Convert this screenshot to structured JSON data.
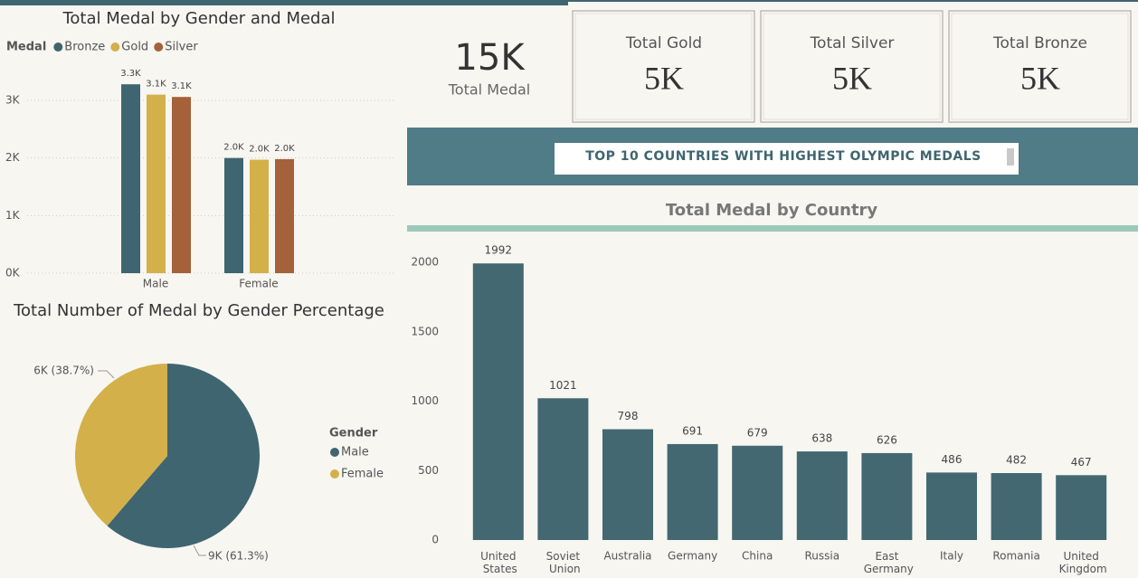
{
  "chart_data": [
    {
      "type": "grouped-bar",
      "title": "Total Medal by Gender and Medal",
      "legend_title": "Medal",
      "categories": [
        "Male",
        "Female"
      ],
      "series": [
        {
          "name": "Bronze",
          "color": "#3f6570",
          "values": [
            3280,
            2000
          ],
          "value_labels": [
            "3.3K",
            "2.0K"
          ]
        },
        {
          "name": "Gold",
          "color": "#d4b04a",
          "values": [
            3100,
            1970
          ],
          "value_labels": [
            "3.1K",
            "2.0K"
          ]
        },
        {
          "name": "Silver",
          "color": "#a5613a",
          "values": [
            3060,
            1980
          ],
          "value_labels": [
            "3.1K",
            "2.0K"
          ]
        }
      ],
      "ylim": [
        0,
        3400
      ],
      "yticks": [
        {
          "value": 0,
          "label": "0K"
        },
        {
          "value": 1000,
          "label": "1K"
        },
        {
          "value": 2000,
          "label": "2K"
        },
        {
          "value": 3000,
          "label": "3K"
        }
      ],
      "grid": true,
      "legend": "top-left"
    },
    {
      "type": "pie",
      "title": "Total Number of Medal by Gender Percentage",
      "legend_title": "Gender",
      "categories": [
        "Male",
        "Female"
      ],
      "values": [
        61.3,
        38.7
      ],
      "value_labels": [
        "9K (61.3%)",
        "6K (38.7%)"
      ],
      "colors": [
        "#3f6570",
        "#d4b04a"
      ],
      "legend": "right"
    },
    {
      "type": "bar",
      "title": "Total Medal by Country",
      "categories": [
        "United States",
        "Soviet Union",
        "Australia",
        "Germany",
        "China",
        "Russia",
        "East Germany",
        "Italy",
        "Romania",
        "United Kingdom"
      ],
      "values": [
        1992,
        1021,
        798,
        691,
        679,
        638,
        626,
        486,
        482,
        467
      ],
      "color": "#436871",
      "ylim": [
        0,
        2200
      ],
      "yticks": [
        0,
        500,
        1000,
        1500,
        2000
      ],
      "grid": false
    }
  ],
  "cards": [
    {
      "value": "15K",
      "label": "Total Medal"
    },
    {
      "value": "5K",
      "label": "Total Gold"
    },
    {
      "value": "5K",
      "label": "Total Silver"
    },
    {
      "value": "5K",
      "label": "Total Bronze"
    }
  ],
  "banner": "TOP 10 COUNTRIES WITH HIGHEST OLYMPIC MEDALS"
}
